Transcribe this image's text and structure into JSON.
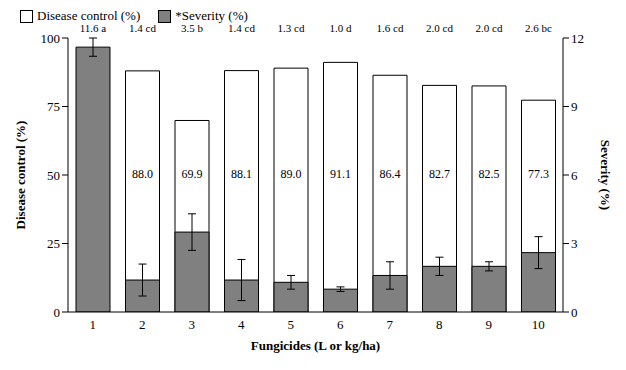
{
  "chart_data": {
    "type": "bar",
    "x_label": "Fungicides (L or kg/ha)",
    "y_label": "Disease  control (%)",
    "y2_label": "Severity (%)",
    "categories": [
      "1",
      "2",
      "3",
      "4",
      "5",
      "6",
      "7",
      "8",
      "9",
      "10"
    ],
    "series": [
      {
        "name": "Disease control (%)",
        "color": "#ffffff",
        "values": [
          null,
          88.0,
          69.9,
          88.1,
          89.0,
          91.1,
          86.4,
          82.7,
          82.5,
          77.3
        ],
        "value_labels": [
          null,
          "88.0",
          "69.9",
          "88.1",
          "89.0",
          "91.1",
          "86.4",
          "82.7",
          "82.5",
          "77.3"
        ]
      },
      {
        "name": "*Severity (%)",
        "color": "#808080",
        "axis": "y2",
        "values": [
          11.6,
          1.4,
          3.5,
          1.4,
          1.3,
          1.0,
          1.6,
          2.0,
          2.0,
          2.6
        ],
        "value_labels": [
          "11.6 a",
          "1.4 cd",
          "3.5 b",
          "1.4 cd",
          "1.3 cd",
          "1.0 d",
          "1.6 cd",
          "2.0 cd",
          "2.0 cd",
          "2.6 bc"
        ],
        "error": [
          0.4,
          0.7,
          0.8,
          0.9,
          0.3,
          0.1,
          0.6,
          0.4,
          0.2,
          0.7
        ]
      }
    ],
    "ylim": [
      0,
      100
    ],
    "yticks": [
      0,
      25,
      50,
      75,
      100
    ],
    "y2lim": [
      0,
      12
    ],
    "y2ticks": [
      0,
      3,
      6,
      9,
      12
    ],
    "legend": "top-left",
    "data_labels": true
  }
}
